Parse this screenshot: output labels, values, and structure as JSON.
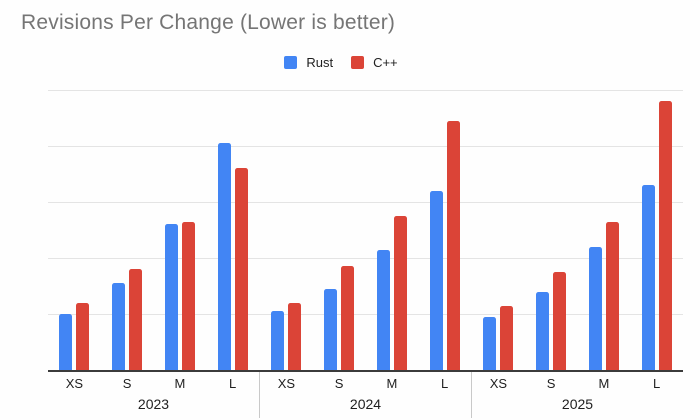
{
  "chart_data": {
    "type": "bar",
    "title": "Revisions Per Change (Lower is better)",
    "xlabel": "",
    "ylabel": "",
    "ylim": [
      0,
      5
    ],
    "gridline_step": 1,
    "y_axis_labels_visible": false,
    "grid": true,
    "legend_position": "top-center",
    "groups": [
      "2023",
      "2024",
      "2025"
    ],
    "categories": [
      "XS",
      "S",
      "M",
      "L"
    ],
    "series": [
      {
        "name": "Rust",
        "key": "rust",
        "color": "#4285f4",
        "values": [
          [
            1.0,
            1.55,
            2.6,
            4.05
          ],
          [
            1.05,
            1.45,
            2.15,
            3.2
          ],
          [
            0.95,
            1.4,
            2.2,
            3.3
          ]
        ]
      },
      {
        "name": "C++",
        "key": "cpp",
        "color": "#db4437",
        "values": [
          [
            1.2,
            1.8,
            2.65,
            3.6
          ],
          [
            1.2,
            1.85,
            2.75,
            4.45
          ],
          [
            1.15,
            1.75,
            2.65,
            4.8
          ]
        ]
      }
    ]
  },
  "styles": {
    "gridline_color": "#e4e4e4",
    "axis_line_color": "#3b3b3b",
    "separator_color": "#c9c9c9",
    "title_color": "#757575",
    "label_color": "#1f1f1f"
  }
}
